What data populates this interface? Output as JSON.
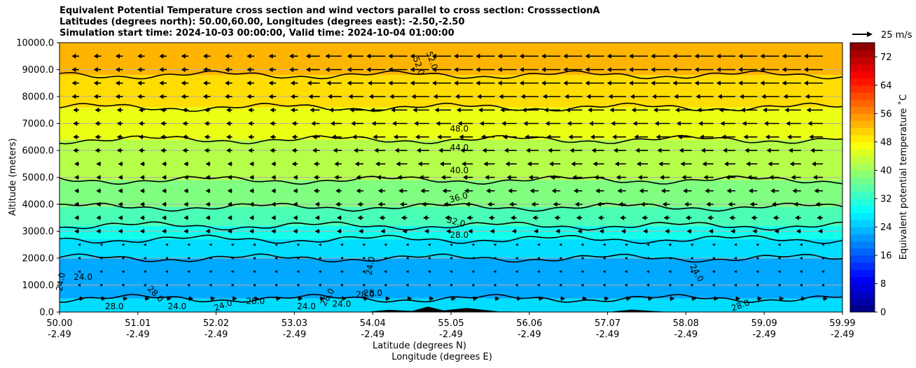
{
  "chart_data": {
    "type": "contourf",
    "title_lines": [
      "Equivalent Potential Temperature cross section and wind vectors parallel to cross section: CrosssectionA",
      "Latitudes (degrees north): 50.00,60.00, Longitudes (degrees east): -2.50,-2.50",
      "Simulation start time: 2024-10-03 00:00:00, Valid time: 2024-10-04 01:00:00"
    ],
    "ylabel": "Altitude (meters)",
    "xlabel_lines": [
      "Latitude (degrees N)",
      "Longitude (degrees E)"
    ],
    "xlim": [
      50.0,
      59.99
    ],
    "ylim": [
      0,
      10000
    ],
    "x_ticks": [
      {
        "lat": "50.00",
        "lon": "-2.49"
      },
      {
        "lat": "51.01",
        "lon": "-2.49"
      },
      {
        "lat": "52.02",
        "lon": "-2.49"
      },
      {
        "lat": "53.03",
        "lon": "-2.49"
      },
      {
        "lat": "54.04",
        "lon": "-2.49"
      },
      {
        "lat": "55.05",
        "lon": "-2.49"
      },
      {
        "lat": "56.06",
        "lon": "-2.49"
      },
      {
        "lat": "57.07",
        "lon": "-2.49"
      },
      {
        "lat": "58.08",
        "lon": "-2.49"
      },
      {
        "lat": "59.09",
        "lon": "-2.49"
      },
      {
        "lat": "59.99",
        "lon": "-2.49"
      }
    ],
    "y_ticks": [
      "0.0",
      "1000.0",
      "2000.0",
      "3000.0",
      "4000.0",
      "5000.0",
      "6000.0",
      "7000.0",
      "8000.0",
      "9000.0",
      "10000.0"
    ],
    "y_tick_values": [
      0,
      1000,
      2000,
      3000,
      4000,
      5000,
      6000,
      7000,
      8000,
      9000,
      10000
    ],
    "colorbar": {
      "label": "Equivalent potential temperature ˚C",
      "min": 0,
      "max": 76,
      "ticks": [
        "0",
        "8",
        "16",
        "24",
        "32",
        "40",
        "48",
        "56",
        "64",
        "72"
      ],
      "tick_values": [
        0,
        8,
        16,
        24,
        32,
        40,
        48,
        56,
        64,
        72
      ]
    },
    "fill_bands": [
      {
        "from": 0,
        "to": 500,
        "theta": 26
      },
      {
        "from": 500,
        "to": 2000,
        "theta": 22
      },
      {
        "from": 2000,
        "to": 2700,
        "theta": 26
      },
      {
        "from": 2700,
        "to": 3200,
        "theta": 30
      },
      {
        "from": 3200,
        "to": 3900,
        "theta": 34
      },
      {
        "from": 3900,
        "to": 4900,
        "theta": 38
      },
      {
        "from": 4900,
        "to": 6400,
        "theta": 42
      },
      {
        "from": 6400,
        "to": 7600,
        "theta": 46
      },
      {
        "from": 7600,
        "to": 8800,
        "theta": 50
      },
      {
        "from": 8800,
        "to": 10000,
        "theta": 53
      }
    ],
    "contour_labels": [
      {
        "text": "52.0",
        "lat": 54.55,
        "alt": 9100,
        "rot": 70
      },
      {
        "text": "52.0",
        "lat": 54.72,
        "alt": 9300,
        "rot": 70
      },
      {
        "text": "48.0",
        "lat": 55.1,
        "alt": 6700,
        "rot": 0
      },
      {
        "text": "44.0",
        "lat": 55.1,
        "alt": 6000,
        "rot": 0
      },
      {
        "text": "40.0",
        "lat": 55.1,
        "alt": 5150,
        "rot": 0
      },
      {
        "text": "36.0",
        "lat": 55.1,
        "alt": 4150,
        "rot": -15
      },
      {
        "text": "32.0",
        "lat": 55.05,
        "alt": 3250,
        "rot": 15
      },
      {
        "text": "28.0",
        "lat": 55.1,
        "alt": 2750,
        "rot": 0
      },
      {
        "text": "24.0",
        "lat": 54.0,
        "alt": 1700,
        "rot": -80
      },
      {
        "text": "24.0",
        "lat": 50.05,
        "alt": 1100,
        "rot": -80
      },
      {
        "text": "24.0",
        "lat": 50.3,
        "alt": 1200,
        "rot": 0
      },
      {
        "text": "24.0",
        "lat": 58.1,
        "alt": 1400,
        "rot": 60
      },
      {
        "text": "28.0",
        "lat": 58.7,
        "alt": 150,
        "rot": -20
      },
      {
        "text": "28.0",
        "lat": 51.2,
        "alt": 600,
        "rot": 45
      },
      {
        "text": "28.0",
        "lat": 50.7,
        "alt": 100,
        "rot": 0
      },
      {
        "text": "24.0",
        "lat": 51.5,
        "alt": 100,
        "rot": 0
      },
      {
        "text": "24.0",
        "lat": 52.1,
        "alt": 150,
        "rot": -20
      },
      {
        "text": "28.0",
        "lat": 52.5,
        "alt": 300,
        "rot": 0
      },
      {
        "text": "24.0",
        "lat": 53.15,
        "alt": 100,
        "rot": 0
      },
      {
        "text": "28.0",
        "lat": 53.9,
        "alt": 550,
        "rot": 0
      },
      {
        "text": "28.0",
        "lat": 54.0,
        "alt": 600,
        "rot": 0
      },
      {
        "text": "24.0",
        "lat": 53.6,
        "alt": 200,
        "rot": 0
      },
      {
        "text": "28.0",
        "lat": 53.45,
        "alt": 500,
        "rot": -60
      }
    ],
    "wind_reference": {
      "label": "25 m/s",
      "speed": 25
    },
    "wind_rows_alt": [
      9500,
      9000,
      8500,
      8000,
      7500,
      7000,
      6500,
      6000,
      5500,
      5000,
      4500,
      4000,
      3500,
      3000,
      2500,
      2000,
      1500,
      1000,
      500
    ],
    "wind_speed_rows_west": [
      [
        3,
        3,
        3,
        3,
        3,
        3,
        3,
        3,
        3,
        3,
        4,
        8,
        10,
        10,
        12,
        12,
        12,
        12,
        12,
        12,
        12,
        12,
        12,
        12,
        12,
        12,
        12,
        12,
        12,
        12,
        12,
        12,
        12,
        12,
        12
      ],
      [
        3,
        3,
        3,
        3,
        3,
        3,
        3,
        3,
        3,
        3,
        4,
        8,
        10,
        10,
        12,
        12,
        12,
        12,
        12,
        12,
        12,
        12,
        12,
        12,
        12,
        12,
        12,
        12,
        12,
        12,
        12,
        12,
        12,
        12,
        12
      ],
      [
        3,
        3,
        3,
        3,
        3,
        3,
        3,
        3,
        3,
        3,
        3,
        7,
        9,
        10,
        11,
        12,
        12,
        12,
        12,
        12,
        12,
        12,
        12,
        12,
        12,
        12,
        12,
        12,
        12,
        12,
        12,
        12,
        12,
        12,
        12
      ],
      [
        3,
        3,
        3,
        3,
        3,
        3,
        3,
        3,
        3,
        3,
        3,
        6,
        8,
        9,
        10,
        11,
        11,
        11,
        11,
        11,
        11,
        11,
        11,
        11,
        11,
        11,
        11,
        11,
        11,
        11,
        11,
        11,
        11,
        11,
        11
      ],
      [
        2,
        2,
        2,
        2,
        2,
        2,
        2,
        2,
        2,
        2,
        3,
        5,
        7,
        8,
        9,
        10,
        10,
        10,
        10,
        10,
        10,
        10,
        10,
        10,
        10,
        10,
        10,
        10,
        10,
        10,
        10,
        10,
        10,
        10,
        10
      ],
      [
        2,
        2,
        2,
        2,
        2,
        2,
        2,
        2,
        2,
        2,
        2,
        4,
        6,
        7,
        8,
        9,
        9,
        9,
        9,
        9,
        9,
        9,
        9,
        9,
        9,
        9,
        9,
        9,
        9,
        9,
        9,
        9,
        9,
        9,
        9
      ],
      [
        2,
        2,
        2,
        2,
        2,
        2,
        2,
        2,
        2,
        2,
        2,
        3,
        5,
        6,
        7,
        8,
        8,
        8,
        8,
        8,
        8,
        8,
        8,
        8,
        8,
        8,
        8,
        8,
        8,
        8,
        8,
        8,
        8,
        8,
        8
      ],
      [
        2,
        2,
        2,
        2,
        2,
        2,
        2,
        2,
        2,
        2,
        2,
        3,
        4,
        5,
        6,
        7,
        7,
        7,
        7,
        7,
        7,
        7,
        7,
        7,
        7,
        7,
        7,
        7,
        7,
        7,
        7,
        7,
        7,
        7,
        7
      ],
      [
        1,
        1,
        1,
        1,
        1,
        1,
        1,
        1,
        1,
        1,
        2,
        2,
        3,
        4,
        5,
        6,
        6,
        6,
        6,
        6,
        6,
        6,
        6,
        6,
        6,
        6,
        6,
        6,
        6,
        6,
        6,
        6,
        6,
        6,
        6
      ],
      [
        1,
        1,
        1,
        1,
        1,
        1,
        1,
        1,
        1,
        1,
        1,
        2,
        3,
        3,
        4,
        5,
        5,
        5,
        5,
        5,
        5,
        5,
        5,
        5,
        5,
        5,
        5,
        5,
        5,
        5,
        5,
        5,
        5,
        5,
        5
      ],
      [
        1,
        1,
        1,
        1,
        1,
        1,
        1,
        1,
        1,
        1,
        1,
        2,
        2,
        3,
        3,
        4,
        4,
        4,
        4,
        4,
        4,
        4,
        4,
        4,
        4,
        4,
        4,
        4,
        4,
        4,
        4,
        4,
        4,
        4,
        4
      ],
      [
        1,
        1,
        1,
        1,
        1,
        1,
        1,
        1,
        1,
        1,
        1,
        1,
        2,
        2,
        3,
        3,
        3,
        3,
        3,
        3,
        3,
        3,
        3,
        3,
        3,
        3,
        3,
        3,
        3,
        3,
        3,
        3,
        3,
        3,
        3
      ],
      [
        1,
        1,
        1,
        1,
        1,
        1,
        1,
        1,
        1,
        1,
        1,
        1,
        1,
        2,
        2,
        2,
        2,
        2,
        2,
        2,
        2,
        2,
        2,
        2,
        2,
        2,
        2,
        2,
        2,
        2,
        2,
        2,
        2,
        2,
        2
      ],
      [
        1,
        1,
        1,
        1,
        1,
        1,
        1,
        1,
        1,
        1,
        1,
        1,
        1,
        1,
        1,
        1,
        1,
        1,
        1,
        1,
        1,
        1,
        1,
        1,
        1,
        1,
        1,
        1,
        1,
        1,
        1,
        1,
        1,
        1,
        1
      ],
      [
        0,
        0,
        0,
        0,
        0,
        0,
        0,
        0,
        0,
        0,
        0,
        0,
        0,
        0,
        0,
        0,
        0,
        0,
        0,
        0,
        0,
        0,
        0,
        0,
        0,
        0,
        0,
        0,
        0,
        0,
        0,
        0,
        0,
        0,
        0
      ],
      [
        0,
        0,
        0,
        0,
        0,
        0,
        0,
        0,
        0,
        0,
        0,
        0,
        0,
        0,
        0,
        0,
        0,
        0,
        0,
        0,
        0,
        0,
        0,
        0,
        0,
        0,
        0,
        0,
        0,
        0,
        0,
        0,
        0,
        0,
        0
      ],
      [
        0,
        0,
        0,
        0,
        0,
        0,
        0,
        0,
        0,
        0,
        0,
        0,
        0,
        0,
        0,
        0,
        0,
        0,
        0,
        0,
        0,
        0,
        0,
        0,
        0,
        0,
        0,
        0,
        0,
        0,
        0,
        0,
        0,
        0,
        0
      ],
      [
        0,
        0,
        0,
        0,
        0,
        0,
        0,
        0,
        0,
        0,
        0,
        0,
        0,
        0,
        0,
        0,
        0,
        0,
        0,
        0,
        0,
        0,
        0,
        0,
        0,
        0,
        0,
        0,
        0,
        0,
        0,
        0,
        0,
        0,
        0
      ],
      [
        -1,
        -1,
        -1,
        -1,
        -1,
        -1,
        -1,
        -1,
        -1,
        -1,
        -1,
        -1,
        -1,
        -1,
        -1,
        -1,
        -1,
        -1,
        -1,
        -1,
        -1,
        -1,
        -1,
        -1,
        -1,
        -1,
        -1,
        -1,
        -1,
        -1,
        -1,
        -1,
        -1,
        -1,
        -1
      ]
    ]
  }
}
